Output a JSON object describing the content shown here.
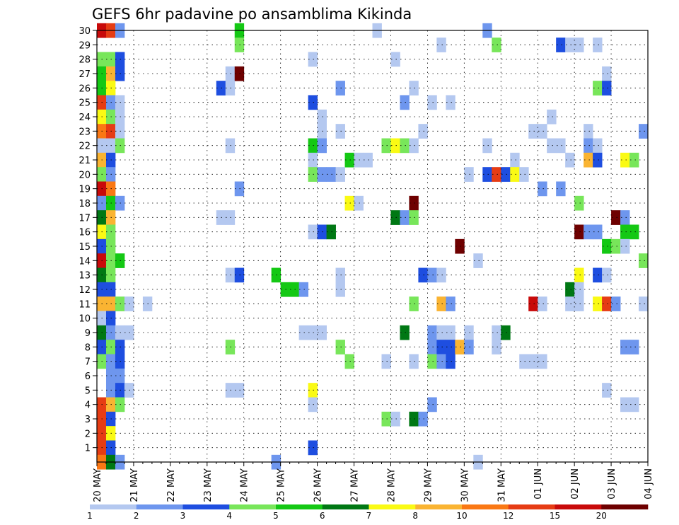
{
  "chart_data": {
    "type": "heatmap",
    "title": "GEFS 6hr padavine po ansamblima Kikinda",
    "xlabel": "",
    "ylabel": "",
    "x_tick_labels": [
      "20 MAY",
      "21 MAY",
      "22 MAY",
      "23 MAY",
      "24 MAY",
      "25 MAY",
      "26 MAY",
      "27 MAY",
      "28 MAY",
      "29 MAY",
      "30 MAY",
      "31 MAY",
      "01 JUN",
      "02 JUN",
      "03 JUN",
      "04 JUN"
    ],
    "x_steps_per_day": 4,
    "x_range_steps": [
      0,
      60
    ],
    "y_tick_labels": [
      "1",
      "2",
      "3",
      "4",
      "5",
      "6",
      "7",
      "8",
      "9",
      "10",
      "11",
      "12",
      "13",
      "14",
      "15",
      "16",
      "17",
      "18",
      "19",
      "20",
      "21",
      "22",
      "23",
      "24",
      "25",
      "26",
      "27",
      "28",
      "29",
      "30"
    ],
    "y_range": [
      0,
      30
    ],
    "grid": true,
    "colorbar": {
      "labels": [
        "1",
        "2",
        "3",
        "4",
        "5",
        "6",
        "7",
        "8",
        "10",
        "12",
        "15",
        "20"
      ],
      "colors": [
        "#b4c8f0",
        "#6e96ee",
        "#1e4ee0",
        "#78e65a",
        "#14c814",
        "#007814",
        "#fafa14",
        "#fab432",
        "#fa7814",
        "#e63c14",
        "#c80a0a",
        "#6e0000"
      ]
    },
    "cells_description": "each cell: [member, time step (6h from 20 MAY 00UTC), color class index into colorbar.colors]",
    "cells": [
      [
        30,
        0,
        10
      ],
      [
        30,
        1,
        9
      ],
      [
        30,
        2,
        1
      ],
      [
        30,
        15,
        4
      ],
      [
        30,
        30,
        0
      ],
      [
        30,
        42,
        1
      ],
      [
        29,
        15,
        3
      ],
      [
        29,
        37,
        0
      ],
      [
        29,
        43,
        3
      ],
      [
        29,
        50,
        2
      ],
      [
        29,
        51,
        0
      ],
      [
        29,
        52,
        0
      ],
      [
        29,
        54,
        0
      ],
      [
        28,
        0,
        3
      ],
      [
        28,
        1,
        3
      ],
      [
        28,
        2,
        2
      ],
      [
        28,
        23,
        0
      ],
      [
        28,
        32,
        0
      ],
      [
        27,
        0,
        4
      ],
      [
        27,
        1,
        7
      ],
      [
        27,
        2,
        2
      ],
      [
        27,
        14,
        0
      ],
      [
        27,
        15,
        11
      ],
      [
        27,
        55,
        0
      ],
      [
        26,
        0,
        4
      ],
      [
        26,
        1,
        6
      ],
      [
        26,
        13,
        2
      ],
      [
        26,
        14,
        0
      ],
      [
        26,
        26,
        1
      ],
      [
        26,
        34,
        0
      ],
      [
        26,
        54,
        3
      ],
      [
        26,
        55,
        2
      ],
      [
        25,
        0,
        9
      ],
      [
        25,
        1,
        1
      ],
      [
        25,
        2,
        0
      ],
      [
        25,
        23,
        2
      ],
      [
        25,
        33,
        1
      ],
      [
        25,
        36,
        0
      ],
      [
        25,
        38,
        0
      ],
      [
        24,
        0,
        6
      ],
      [
        24,
        1,
        3
      ],
      [
        24,
        2,
        0
      ],
      [
        24,
        24,
        0
      ],
      [
        24,
        49,
        0
      ],
      [
        23,
        0,
        8
      ],
      [
        23,
        1,
        9
      ],
      [
        23,
        2,
        0
      ],
      [
        23,
        24,
        0
      ],
      [
        23,
        26,
        0
      ],
      [
        23,
        35,
        0
      ],
      [
        23,
        47,
        0
      ],
      [
        23,
        48,
        0
      ],
      [
        23,
        53,
        0
      ],
      [
        23,
        59,
        1
      ],
      [
        22,
        0,
        0
      ],
      [
        22,
        1,
        0
      ],
      [
        22,
        2,
        3
      ],
      [
        22,
        14,
        0
      ],
      [
        22,
        23,
        4
      ],
      [
        22,
        24,
        1
      ],
      [
        22,
        31,
        3
      ],
      [
        22,
        32,
        6
      ],
      [
        22,
        33,
        3
      ],
      [
        22,
        34,
        0
      ],
      [
        22,
        42,
        0
      ],
      [
        22,
        49,
        0
      ],
      [
        22,
        50,
        0
      ],
      [
        22,
        53,
        1
      ],
      [
        22,
        54,
        0
      ],
      [
        21,
        0,
        7
      ],
      [
        21,
        1,
        2
      ],
      [
        21,
        23,
        0
      ],
      [
        21,
        27,
        4
      ],
      [
        21,
        28,
        0
      ],
      [
        21,
        29,
        0
      ],
      [
        21,
        45,
        0
      ],
      [
        21,
        51,
        0
      ],
      [
        21,
        53,
        7
      ],
      [
        21,
        54,
        2
      ],
      [
        21,
        57,
        6
      ],
      [
        21,
        58,
        3
      ],
      [
        20,
        0,
        3
      ],
      [
        20,
        1,
        1
      ],
      [
        20,
        23,
        3
      ],
      [
        20,
        24,
        1
      ],
      [
        20,
        25,
        1
      ],
      [
        20,
        26,
        0
      ],
      [
        20,
        40,
        0
      ],
      [
        20,
        42,
        2
      ],
      [
        20,
        43,
        9
      ],
      [
        20,
        44,
        2
      ],
      [
        20,
        45,
        6
      ],
      [
        20,
        46,
        0
      ],
      [
        19,
        0,
        10
      ],
      [
        19,
        1,
        8
      ],
      [
        19,
        15,
        1
      ],
      [
        19,
        48,
        1
      ],
      [
        19,
        50,
        1
      ],
      [
        18,
        0,
        1
      ],
      [
        18,
        1,
        4
      ],
      [
        18,
        2,
        1
      ],
      [
        18,
        27,
        6
      ],
      [
        18,
        28,
        0
      ],
      [
        18,
        34,
        11
      ],
      [
        18,
        52,
        3
      ],
      [
        17,
        0,
        5
      ],
      [
        17,
        1,
        7
      ],
      [
        17,
        13,
        0
      ],
      [
        17,
        14,
        0
      ],
      [
        17,
        32,
        5
      ],
      [
        17,
        33,
        1
      ],
      [
        17,
        34,
        3
      ],
      [
        17,
        56,
        11
      ],
      [
        17,
        57,
        1
      ],
      [
        16,
        0,
        6
      ],
      [
        16,
        1,
        3
      ],
      [
        16,
        23,
        0
      ],
      [
        16,
        24,
        2
      ],
      [
        16,
        25,
        5
      ],
      [
        16,
        52,
        11
      ],
      [
        16,
        53,
        1
      ],
      [
        16,
        54,
        1
      ],
      [
        16,
        57,
        4
      ],
      [
        16,
        58,
        4
      ],
      [
        15,
        0,
        2
      ],
      [
        15,
        1,
        3
      ],
      [
        15,
        39,
        11
      ],
      [
        15,
        55,
        4
      ],
      [
        15,
        56,
        3
      ],
      [
        15,
        57,
        0
      ],
      [
        14,
        0,
        10
      ],
      [
        14,
        1,
        3
      ],
      [
        14,
        2,
        4
      ],
      [
        14,
        41,
        0
      ],
      [
        14,
        59,
        3
      ],
      [
        13,
        0,
        5
      ],
      [
        13,
        1,
        3
      ],
      [
        13,
        14,
        0
      ],
      [
        13,
        15,
        2
      ],
      [
        13,
        19,
        4
      ],
      [
        13,
        26,
        0
      ],
      [
        13,
        35,
        2
      ],
      [
        13,
        36,
        1
      ],
      [
        13,
        37,
        0
      ],
      [
        13,
        52,
        6
      ],
      [
        13,
        54,
        2
      ],
      [
        13,
        55,
        0
      ],
      [
        12,
        0,
        2
      ],
      [
        12,
        1,
        2
      ],
      [
        12,
        20,
        4
      ],
      [
        12,
        21,
        4
      ],
      [
        12,
        22,
        1
      ],
      [
        12,
        26,
        0
      ],
      [
        12,
        51,
        5
      ],
      [
        12,
        52,
        0
      ],
      [
        11,
        0,
        7
      ],
      [
        11,
        1,
        7
      ],
      [
        11,
        2,
        3
      ],
      [
        11,
        3,
        0
      ],
      [
        11,
        5,
        0
      ],
      [
        11,
        34,
        3
      ],
      [
        11,
        37,
        7
      ],
      [
        11,
        38,
        1
      ],
      [
        11,
        47,
        10
      ],
      [
        11,
        48,
        0
      ],
      [
        11,
        51,
        0
      ],
      [
        11,
        52,
        0
      ],
      [
        11,
        54,
        6
      ],
      [
        11,
        55,
        9
      ],
      [
        11,
        56,
        1
      ],
      [
        11,
        59,
        0
      ],
      [
        10,
        0,
        0
      ],
      [
        10,
        1,
        2
      ],
      [
        9,
        0,
        5
      ],
      [
        9,
        1,
        1
      ],
      [
        9,
        2,
        0
      ],
      [
        9,
        3,
        0
      ],
      [
        9,
        22,
        0
      ],
      [
        9,
        23,
        0
      ],
      [
        9,
        24,
        0
      ],
      [
        9,
        33,
        5
      ],
      [
        9,
        36,
        1
      ],
      [
        9,
        37,
        0
      ],
      [
        9,
        38,
        0
      ],
      [
        9,
        40,
        0
      ],
      [
        9,
        43,
        0
      ],
      [
        9,
        44,
        5
      ],
      [
        8,
        0,
        2
      ],
      [
        8,
        1,
        3
      ],
      [
        8,
        2,
        2
      ],
      [
        8,
        14,
        3
      ],
      [
        8,
        26,
        3
      ],
      [
        8,
        36,
        1
      ],
      [
        8,
        37,
        2
      ],
      [
        8,
        38,
        2
      ],
      [
        8,
        39,
        7
      ],
      [
        8,
        40,
        1
      ],
      [
        8,
        43,
        0
      ],
      [
        8,
        57,
        1
      ],
      [
        8,
        58,
        1
      ],
      [
        7,
        0,
        3
      ],
      [
        7,
        1,
        1
      ],
      [
        7,
        2,
        2
      ],
      [
        7,
        27,
        3
      ],
      [
        7,
        31,
        0
      ],
      [
        7,
        34,
        0
      ],
      [
        7,
        36,
        3
      ],
      [
        7,
        37,
        1
      ],
      [
        7,
        38,
        2
      ],
      [
        7,
        46,
        0
      ],
      [
        7,
        47,
        0
      ],
      [
        7,
        48,
        0
      ],
      [
        6,
        1,
        1
      ],
      [
        6,
        2,
        1
      ],
      [
        5,
        1,
        1
      ],
      [
        5,
        2,
        2
      ],
      [
        5,
        3,
        0
      ],
      [
        5,
        14,
        0
      ],
      [
        5,
        15,
        0
      ],
      [
        5,
        23,
        6
      ],
      [
        5,
        55,
        0
      ],
      [
        4,
        0,
        9
      ],
      [
        4,
        1,
        7
      ],
      [
        4,
        2,
        3
      ],
      [
        4,
        23,
        0
      ],
      [
        4,
        36,
        1
      ],
      [
        4,
        57,
        0
      ],
      [
        4,
        58,
        0
      ],
      [
        3,
        0,
        9
      ],
      [
        3,
        1,
        2
      ],
      [
        3,
        31,
        3
      ],
      [
        3,
        32,
        0
      ],
      [
        3,
        34,
        5
      ],
      [
        3,
        35,
        1
      ],
      [
        2,
        0,
        9
      ],
      [
        2,
        1,
        6
      ],
      [
        1,
        0,
        9
      ],
      [
        1,
        1,
        2
      ],
      [
        1,
        23,
        2
      ],
      [
        0,
        0,
        8
      ],
      [
        0,
        1,
        5
      ],
      [
        0,
        2,
        1
      ],
      [
        0,
        19,
        1
      ],
      [
        0,
        41,
        0
      ]
    ]
  }
}
